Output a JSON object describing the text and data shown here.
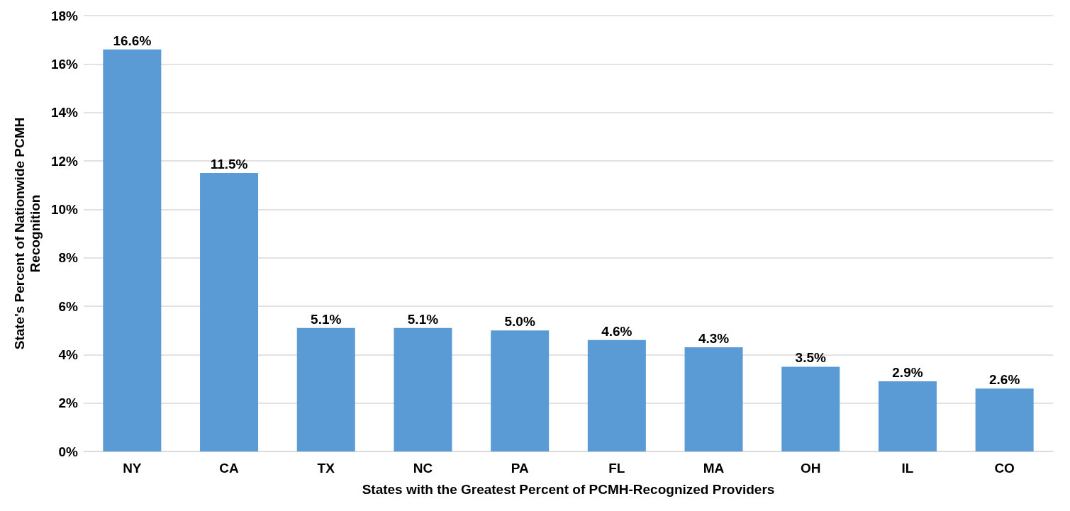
{
  "chart_data": {
    "type": "bar",
    "xlabel": "States with the Greatest Percent of PCMH-Recognized Providers",
    "ylabel": "State's Percent of Nationwide PCMH\nRecognition",
    "categories": [
      "NY",
      "CA",
      "TX",
      "NC",
      "PA",
      "FL",
      "MA",
      "OH",
      "IL",
      "CO"
    ],
    "values": [
      16.6,
      11.5,
      5.1,
      5.1,
      5.0,
      4.6,
      4.3,
      3.5,
      2.9,
      2.6
    ],
    "value_labels": [
      "16.6%",
      "11.5%",
      "5.1%",
      "5.1%",
      "5.0%",
      "4.6%",
      "4.3%",
      "3.5%",
      "2.9%",
      "2.6%"
    ],
    "color": "#5b9bd5",
    "ylim": [
      0,
      18
    ],
    "yticks": [
      {
        "value": 0,
        "label": "0%"
      },
      {
        "value": 2,
        "label": "2%"
      },
      {
        "value": 4,
        "label": "4%"
      },
      {
        "value": 6,
        "label": "6%"
      },
      {
        "value": 8,
        "label": "8%"
      },
      {
        "value": 10,
        "label": "10%"
      },
      {
        "value": 12,
        "label": "12%"
      },
      {
        "value": 14,
        "label": "14%"
      },
      {
        "value": 16,
        "label": "16%"
      },
      {
        "value": 18,
        "label": "18%"
      }
    ],
    "grid": "y"
  }
}
